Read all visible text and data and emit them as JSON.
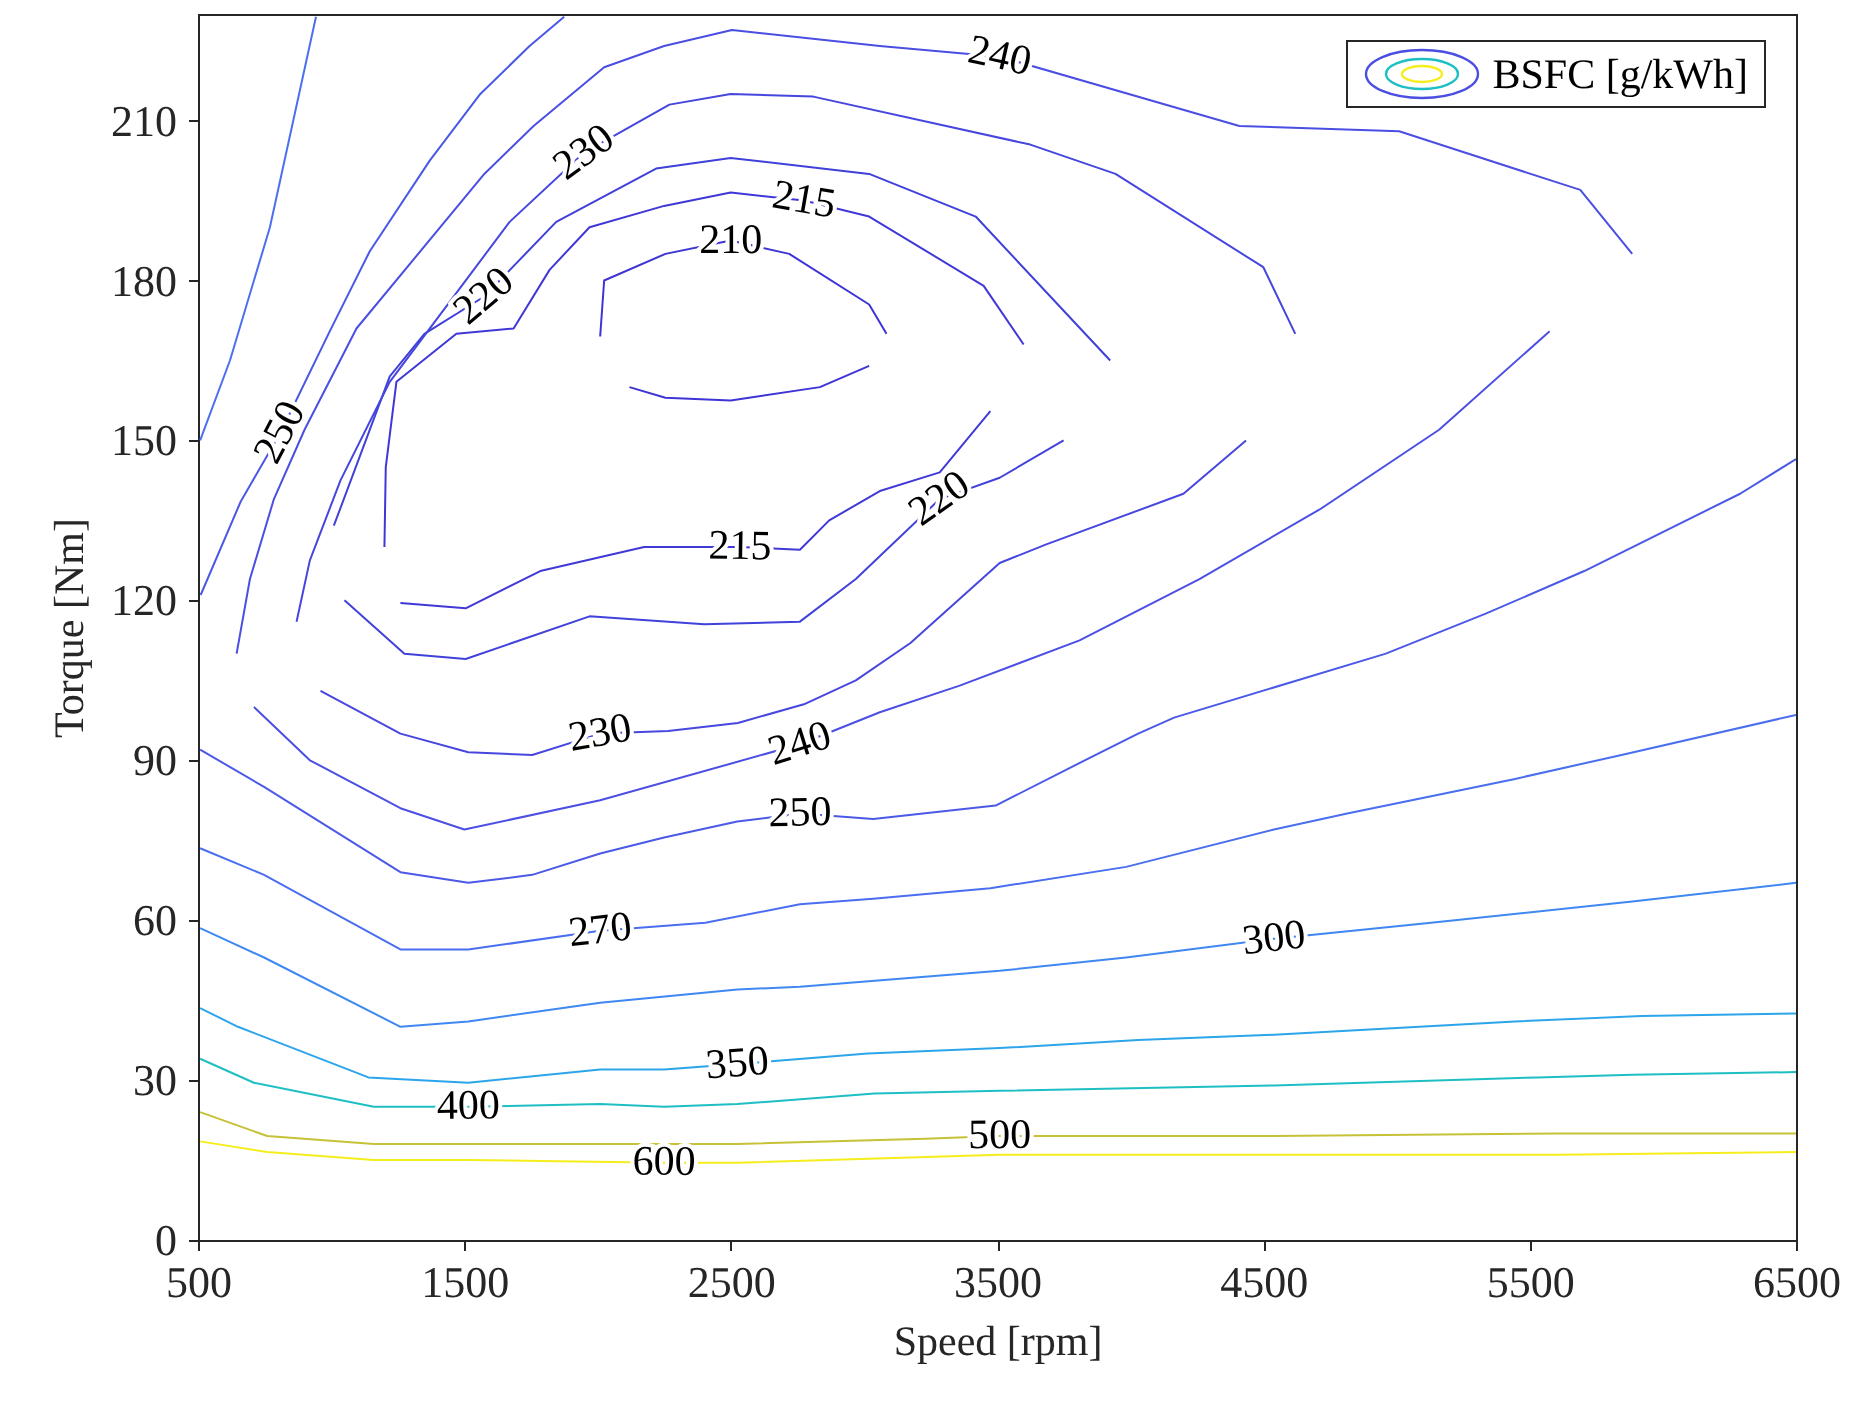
{
  "chart_data": {
    "type": "line",
    "xlabel": "Speed [rpm]",
    "ylabel": "Torque [Nm]",
    "legend_title": "BSFC [g/kWh]",
    "xlim": [
      500,
      6500
    ],
    "ylim": [
      0,
      230
    ],
    "xticks": [
      500,
      1500,
      2500,
      3500,
      4500,
      5500,
      6500
    ],
    "yticks": [
      0,
      30,
      60,
      90,
      120,
      150,
      180,
      210
    ],
    "series": [
      {
        "name": "210",
        "color": "#3e33d4",
        "x": [
          2010,
          2025,
          2255,
          2500,
          2720,
          3020,
          3085
        ],
        "values": [
          169.5,
          180,
          185,
          187.5,
          185,
          175.5,
          170
        ]
      },
      {
        "color": "#3f34d5",
        "x": [
          2120,
          2255,
          2500,
          2835,
          3020
        ],
        "values": [
          160,
          158,
          157.5,
          160,
          164
        ]
      },
      {
        "name": "215",
        "color": "#4038d6",
        "x": [
          1200,
          1205,
          1245,
          1470,
          1685,
          1820,
          1970,
          2250,
          2500,
          2775,
          3020,
          3450,
          3600
        ],
        "values": [
          130,
          145,
          161,
          170,
          171,
          182,
          190,
          194,
          196.5,
          195,
          192,
          179,
          168
        ]
      },
      {
        "name": "215",
        "color": "#4139d7",
        "x": [
          1260,
          1505,
          1785,
          2175,
          2535,
          2760,
          2870,
          3060,
          3285,
          3475
        ],
        "values": [
          119.5,
          118.5,
          125.5,
          130,
          130,
          129.5,
          135,
          140.5,
          144,
          155.5
        ]
      },
      {
        "name": "220",
        "color": "#4040da",
        "x": [
          1010,
          1220,
          1350,
          1575,
          1845,
          2220,
          2500,
          3020,
          3420,
          3925
        ],
        "values": [
          134,
          162,
          170,
          177,
          191,
          201,
          203,
          200,
          192,
          165
        ]
      },
      {
        "name": "220",
        "color": "#4141db",
        "x": [
          1050,
          1275,
          1505,
          1970,
          2400,
          2760,
          2970,
          3285,
          3510,
          3750
        ],
        "values": [
          120,
          110,
          109,
          117,
          115.5,
          116,
          124,
          139,
          143,
          150
        ]
      },
      {
        "name": "230",
        "color": "#4646de",
        "x": [
          870,
          920,
          1035,
          1220,
          1445,
          1670,
          1950,
          2270,
          2500,
          2810,
          3625,
          3945,
          4500,
          4620
        ],
        "values": [
          116,
          127.5,
          142.5,
          161,
          176,
          191,
          204,
          213,
          215,
          214.5,
          205.5,
          200,
          182.5,
          170
        ]
      },
      {
        "name": "230",
        "color": "#4747df",
        "x": [
          960,
          1260,
          1515,
          1755,
          2010,
          2265,
          2527,
          2775,
          2970,
          3175,
          3510,
          3685,
          4200,
          4435
        ],
        "values": [
          103,
          95,
          91.5,
          91,
          95,
          95.5,
          97,
          100.5,
          105,
          112,
          127,
          130.5,
          140,
          150
        ]
      },
      {
        "name": "240",
        "color": "#4a4ee2",
        "x": [
          645,
          695,
          785,
          900,
          1095,
          1575,
          1760,
          2025,
          2250,
          2505,
          3060,
          3510,
          4410,
          5010,
          5690,
          5885
        ],
        "values": [
          110,
          124,
          139,
          152,
          171,
          200,
          209,
          220,
          224,
          227,
          224,
          222,
          209,
          208,
          197,
          185
        ]
      },
      {
        "name": "240",
        "color": "#4b4fe3",
        "x": [
          710,
          920,
          1260,
          1500,
          2010,
          2760,
          3060,
          3360,
          3810,
          4260,
          4710,
          5160,
          5575
        ],
        "values": [
          100,
          90,
          81,
          77,
          82.5,
          93,
          99,
          104,
          112.5,
          124,
          137,
          152,
          170.5
        ]
      },
      {
        "name": "250",
        "color": "#4a58e6",
        "x": [
          510,
          660,
          810,
          995,
          1145,
          1370,
          1560,
          1745,
          1875
        ],
        "values": [
          121,
          138.5,
          151.5,
          170.5,
          185.5,
          202.5,
          215,
          224,
          229.5
        ]
      },
      {
        "color": "#4b6ff1",
        "x": [
          508,
          620,
          770,
          943
        ],
        "values": [
          150,
          165,
          190,
          229.5
        ]
      },
      {
        "name": "250",
        "color": "#4b59e7",
        "x": [
          508,
          748,
          1260,
          1515,
          1755,
          2010,
          2250,
          2525,
          2760,
          3035,
          3495,
          3850,
          4030,
          4165,
          4960,
          5335,
          5705,
          6290,
          6500
        ],
        "values": [
          92,
          85,
          69,
          67,
          68.5,
          72.5,
          75.5,
          78.5,
          80,
          79,
          81.5,
          90.5,
          95,
          98,
          110,
          117.5,
          125.5,
          140,
          146.5
        ]
      },
      {
        "name": "270",
        "color": "#4a6ef0",
        "x": [
          508,
          748,
          1260,
          1515,
          2010,
          2405,
          2760,
          3035,
          3475,
          3985,
          4540,
          4815,
          5445,
          5845,
          6500
        ],
        "values": [
          73.5,
          68.5,
          54.5,
          54.5,
          58,
          59.5,
          63,
          64,
          66,
          70,
          77,
          80,
          86.5,
          91,
          98.5
        ]
      },
      {
        "name": "300",
        "color": "#3f88f2",
        "x": [
          508,
          748,
          1260,
          1515,
          2010,
          2525,
          2760,
          3510,
          3985,
          4540,
          5130,
          5885,
          6500
        ],
        "values": [
          58.5,
          53,
          40,
          41,
          44.5,
          47,
          47.5,
          50.5,
          53,
          56.5,
          59.5,
          63.5,
          67
        ]
      },
      {
        "name": "350",
        "color": "#2ca5ea",
        "x": [
          508,
          650,
          1140,
          1515,
          2010,
          2250,
          2525,
          3015,
          3510,
          4030,
          4540,
          5445,
          5920,
          6500
        ],
        "values": [
          43.5,
          40,
          30.5,
          29.5,
          32,
          32,
          33,
          35,
          36,
          37.5,
          38.5,
          41,
          42,
          42.5
        ]
      },
      {
        "name": "400",
        "color": "#1ebfc4",
        "x": [
          508,
          710,
          1160,
          1515,
          2010,
          2250,
          2525,
          3040,
          3510,
          4540,
          5530,
          5885,
          6500
        ],
        "values": [
          34,
          29.5,
          25,
          25,
          25.5,
          25,
          25.5,
          27.5,
          28,
          29,
          30.5,
          31,
          31.5
        ]
      },
      {
        "name": "500",
        "color": "#c6c238",
        "x": [
          508,
          760,
          1160,
          1515,
          2250,
          2525,
          3230,
          3510,
          4540,
          5605,
          6500
        ],
        "values": [
          24,
          19.5,
          18,
          18,
          18,
          18,
          19,
          19.5,
          19.5,
          20,
          20
        ]
      },
      {
        "name": "600",
        "color": "#f5ee1c",
        "x": [
          508,
          760,
          1160,
          1515,
          2250,
          2525,
          3510,
          4540,
          5605,
          6500
        ],
        "values": [
          18.5,
          16.5,
          15,
          15,
          14.5,
          14.5,
          16,
          16,
          16,
          16.5
        ]
      }
    ]
  }
}
